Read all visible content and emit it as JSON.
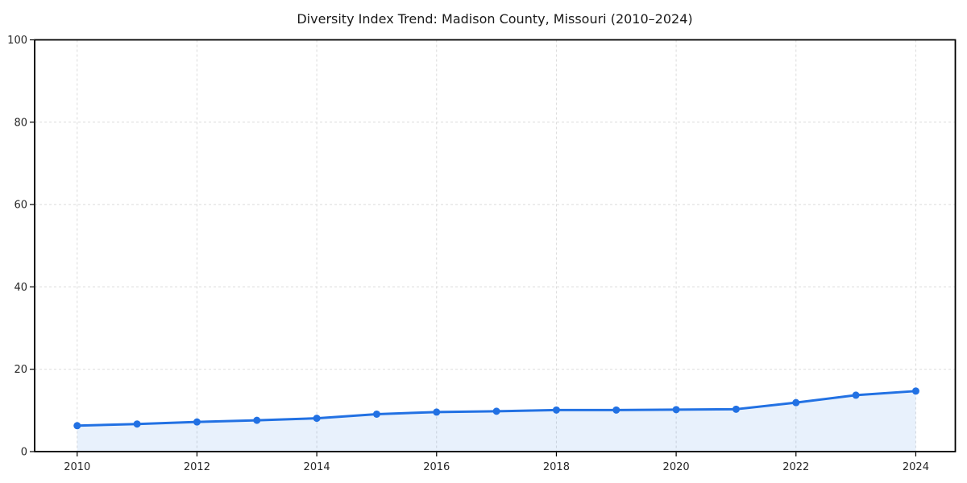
{
  "chart_data": {
    "type": "line",
    "title": "Diversity Index Trend: Madison County, Missouri (2010–2024)",
    "x": [
      2010,
      2011,
      2012,
      2013,
      2014,
      2015,
      2016,
      2017,
      2018,
      2019,
      2020,
      2021,
      2022,
      2023,
      2024
    ],
    "series": [
      {
        "name": "Diversity Index",
        "values": [
          6.3,
          6.7,
          7.2,
          7.6,
          8.1,
          9.1,
          9.6,
          9.8,
          10.1,
          10.1,
          10.2,
          10.3,
          11.9,
          13.7,
          14.7
        ]
      }
    ],
    "xlabel": "",
    "ylabel": "",
    "xlim": [
      2009.29,
      2024.66
    ],
    "ylim": [
      0,
      100
    ],
    "xticks": [
      2010,
      2012,
      2014,
      2016,
      2018,
      2020,
      2022,
      2024
    ],
    "xtick_labels": [
      "2010",
      "2012",
      "2014",
      "2016",
      "2018",
      "2020",
      "2022",
      "2024"
    ],
    "yticks": [
      0,
      20,
      40,
      60,
      80,
      100
    ],
    "ytick_labels": [
      "0",
      "20",
      "40",
      "60",
      "80",
      "100"
    ],
    "grid": true,
    "grid_style": "dashed",
    "legend_position": "none",
    "marker": "circle",
    "colors": {
      "line": "#2271e3",
      "marker": "#2271e3",
      "fill": "rgba(34,113,227,0.10)",
      "grid": "#dbdbdb",
      "spine": "#000000",
      "text": "#1a1a1a"
    }
  }
}
